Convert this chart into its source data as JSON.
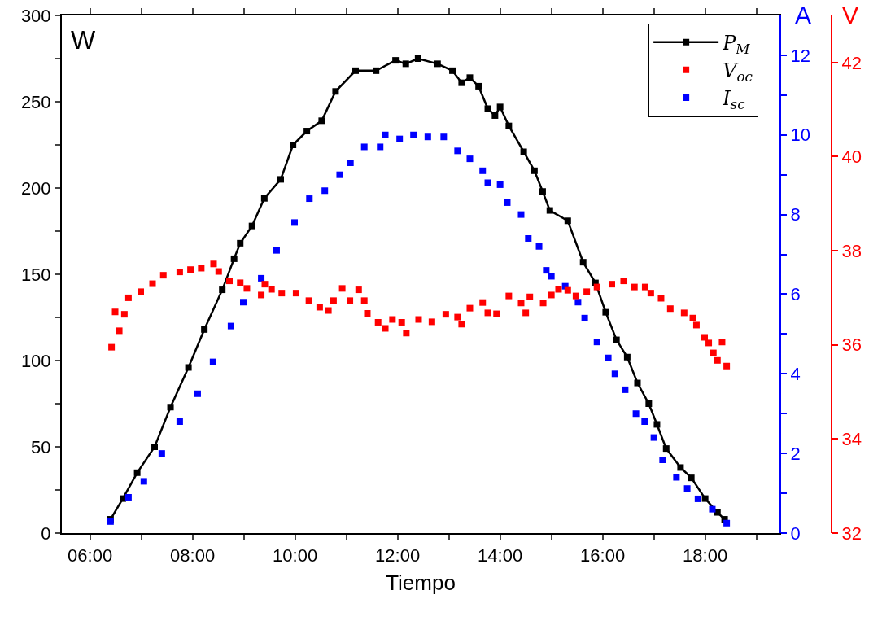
{
  "chart_data": {
    "type": "scatter",
    "xlabel": "Tiempo",
    "ylabel": "W",
    "y2label": "A",
    "y3label": "V",
    "xlim": [
      5.45,
      19.45
    ],
    "xticks": [
      {
        "value": 6,
        "label": "06:00"
      },
      {
        "value": 7,
        "label": null
      },
      {
        "value": 8,
        "label": "08:00"
      },
      {
        "value": 9,
        "label": null
      },
      {
        "value": 10,
        "label": "10:00"
      },
      {
        "value": 11,
        "label": null
      },
      {
        "value": 12,
        "label": "12:00"
      },
      {
        "value": 13,
        "label": null
      },
      {
        "value": 14,
        "label": "14:00"
      },
      {
        "value": 15,
        "label": null
      },
      {
        "value": 16,
        "label": "16:00"
      },
      {
        "value": 17,
        "label": null
      },
      {
        "value": 18,
        "label": "18:00"
      },
      {
        "value": 19,
        "label": null
      }
    ],
    "ylim": [
      0,
      300
    ],
    "yticks": [
      0,
      {
        "value": 25,
        "label": null
      },
      50,
      {
        "value": 75,
        "label": null
      },
      100,
      {
        "value": 125,
        "label": null
      },
      150,
      {
        "value": 175,
        "label": null
      },
      200,
      {
        "value": 225,
        "label": null
      },
      250,
      {
        "value": 275,
        "label": null
      },
      300
    ],
    "y2lim": [
      0,
      13
    ],
    "y2ticks": [
      0,
      {
        "value": 1,
        "label": null
      },
      2,
      {
        "value": 3,
        "label": null
      },
      4,
      {
        "value": 5,
        "label": null
      },
      6,
      {
        "value": 7,
        "label": null
      },
      8,
      {
        "value": 9,
        "label": null
      },
      10,
      {
        "value": 11,
        "label": null
      },
      12
    ],
    "y3lim": [
      32,
      43
    ],
    "y3ticks": [
      32,
      34,
      36,
      38,
      40,
      42
    ],
    "grid": false,
    "legend": "top right",
    "marker": "square",
    "line_style": "solid",
    "series": [
      {
        "name": "P$_{M}$",
        "type": "line",
        "color": "#000000",
        "x": [
          6.4,
          6.64,
          6.92,
          7.26,
          7.57,
          7.92,
          8.23,
          8.58,
          8.81,
          8.93,
          9.16,
          9.4,
          9.72,
          9.96,
          10.23,
          10.52,
          10.79,
          11.18,
          11.58,
          11.96,
          12.16,
          12.4,
          12.78,
          13.07,
          13.25,
          13.41,
          13.58,
          13.76,
          13.9,
          14.0,
          14.17,
          14.46,
          14.67,
          14.83,
          14.97,
          15.32,
          15.62,
          15.86,
          16.06,
          16.27,
          16.48,
          16.68,
          16.9,
          17.06,
          17.24,
          17.52,
          17.73,
          18.0,
          18.24,
          18.38
        ],
        "values": [
          8,
          20,
          35,
          50,
          73,
          96,
          118,
          141,
          159,
          168,
          178,
          194,
          205,
          225,
          233,
          239,
          256,
          268,
          268,
          274,
          272,
          275,
          272,
          268,
          261,
          264,
          259,
          246,
          242,
          247,
          236,
          221,
          210,
          198,
          187,
          181,
          157,
          145,
          128,
          112,
          102,
          87,
          75,
          63,
          49,
          38,
          32,
          20,
          12,
          8
        ]
      },
      {
        "name": "V$_{oc}$",
        "axis": "y3",
        "color": "#ff0000",
        "x": [
          6.42,
          6.49,
          6.57,
          6.67,
          6.75,
          6.99,
          7.22,
          7.43,
          7.75,
          7.96,
          8.17,
          8.41,
          8.51,
          8.72,
          8.93,
          9.06,
          9.34,
          9.41,
          9.54,
          9.74,
          10.02,
          10.27,
          10.48,
          10.65,
          10.75,
          10.92,
          11.07,
          11.24,
          11.35,
          11.41,
          11.62,
          11.76,
          11.9,
          12.08,
          12.17,
          12.41,
          12.67,
          12.94,
          13.17,
          13.25,
          13.41,
          13.66,
          13.76,
          13.93,
          14.17,
          14.41,
          14.5,
          14.58,
          14.84,
          15.0,
          15.14,
          15.32,
          15.48,
          15.69,
          15.89,
          16.18,
          16.41,
          16.62,
          16.83,
          16.94,
          17.14,
          17.32,
          17.59,
          17.76,
          17.83,
          17.99,
          18.07,
          18.16,
          18.24,
          18.33,
          18.42
        ],
        "values": [
          35.95,
          36.7,
          36.3,
          36.65,
          37.0,
          37.13,
          37.3,
          37.48,
          37.55,
          37.6,
          37.63,
          37.72,
          37.56,
          37.36,
          37.32,
          37.2,
          37.06,
          37.29,
          37.18,
          37.1,
          37.1,
          36.94,
          36.8,
          36.73,
          36.94,
          37.2,
          36.94,
          37.17,
          36.94,
          36.67,
          36.48,
          36.35,
          36.54,
          36.48,
          36.25,
          36.54,
          36.49,
          36.65,
          36.59,
          36.44,
          36.78,
          36.9,
          36.68,
          36.66,
          37.04,
          36.89,
          36.68,
          37.02,
          36.89,
          37.06,
          37.18,
          37.16,
          37.04,
          37.13,
          37.23,
          37.29,
          37.36,
          37.23,
          37.23,
          37.1,
          36.99,
          36.77,
          36.68,
          36.57,
          36.42,
          36.16,
          36.04,
          35.83,
          35.67,
          36.06,
          35.55
        ]
      },
      {
        "name": "I$_{sc}$",
        "axis": "y2",
        "color": "#0000ff",
        "x": [
          6.4,
          6.75,
          7.05,
          7.4,
          7.75,
          8.1,
          8.4,
          8.75,
          8.99,
          9.34,
          9.64,
          9.99,
          10.28,
          10.58,
          10.87,
          11.08,
          11.35,
          11.66,
          11.76,
          12.04,
          12.31,
          12.59,
          12.9,
          13.17,
          13.41,
          13.66,
          13.76,
          14.0,
          14.14,
          14.41,
          14.55,
          14.76,
          14.9,
          15.0,
          15.27,
          15.52,
          15.65,
          15.89,
          16.11,
          16.24,
          16.44,
          16.65,
          16.82,
          17.0,
          17.17,
          17.44,
          17.65,
          17.86,
          18.14,
          18.42
        ],
        "values": [
          0.29,
          0.9,
          1.3,
          2.0,
          2.8,
          3.5,
          4.3,
          5.2,
          5.8,
          6.4,
          7.1,
          7.8,
          8.4,
          8.6,
          9.0,
          9.3,
          9.7,
          9.7,
          10.0,
          9.9,
          10.0,
          9.95,
          9.95,
          9.6,
          9.4,
          9.1,
          8.8,
          8.75,
          8.3,
          8.0,
          7.4,
          7.2,
          6.6,
          6.45,
          6.2,
          5.8,
          5.4,
          4.8,
          4.4,
          4.0,
          3.6,
          3.0,
          2.8,
          2.4,
          1.84,
          1.4,
          1.12,
          0.86,
          0.6,
          0.25
        ]
      }
    ]
  }
}
